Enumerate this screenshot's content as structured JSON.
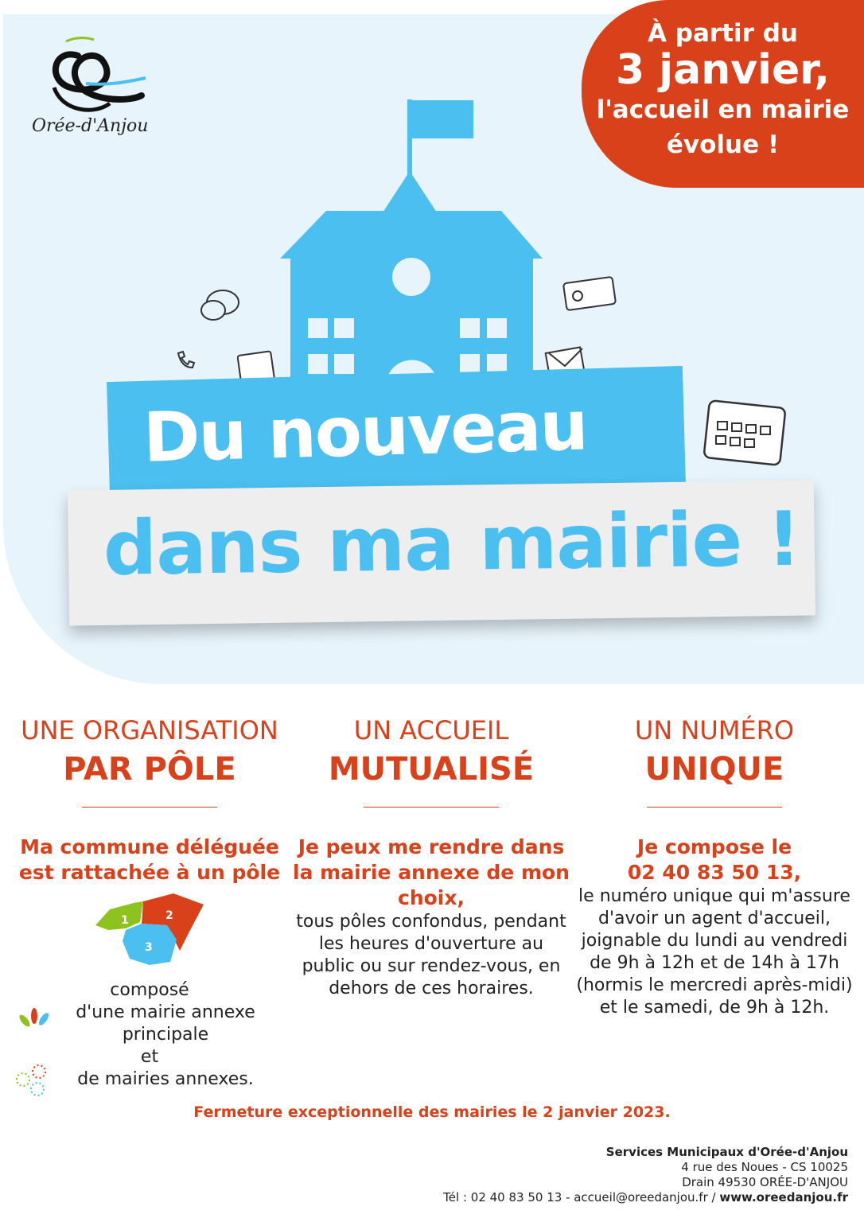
{
  "logo": {
    "text": "Orée-d'Anjou"
  },
  "badge": {
    "line1": "À partir du",
    "line2": "3 janvier,",
    "line3": "l'accueil en mairie",
    "line4": "évolue !"
  },
  "headline": {
    "line1": "Du nouveau",
    "line2": "dans ma mairie !"
  },
  "colors": {
    "accent": "#d9411a",
    "blue": "#4bbfef",
    "green": "#8dc21f",
    "background": "#e8f4fc"
  },
  "columns": [
    {
      "title1": "UNE ORGANISATION",
      "title2": "PAR PÔLE",
      "subtitle": "Ma commune déléguée est rattachée à un pôle",
      "map_labels": [
        "1",
        "2",
        "3"
      ],
      "body1": "composé",
      "body2": "d'une mairie annexe principale",
      "body3": "et",
      "body4": "de mairies annexes."
    },
    {
      "title1": "UN ACCUEIL",
      "title2": "MUTUALISÉ",
      "subtitle": "Je peux me rendre dans la mairie annexe de mon choix,",
      "body": "tous pôles confondus, pendant les heures d'ouverture au public ou sur rendez-vous, en dehors de ces horaires."
    },
    {
      "title1": "UN NUMÉRO",
      "title2": "UNIQUE",
      "subtitle1": "Je compose le",
      "subtitle2": "02 40 83 50 13,",
      "body": "le numéro unique qui m'assure d'avoir un agent d'accueil, joignable du lundi au vendredi de 9h à 12h et de 14h à 17h (hormis le mercredi après-midi) et le samedi, de 9h à 12h."
    }
  ],
  "notice": "Fermeture exceptionnelle des mairies le 2 janvier 2023.",
  "footer": {
    "org": "Services Municipaux d'Orée-d'Anjou",
    "address1": "4 rue des Noues - CS 10025",
    "address2": "Drain 49530 ORÉE-D'ANJOU",
    "contact": "Tél : 02 40 83 50 13 - accueil@oreedanjou.fr / ",
    "website": "www.oreedanjou.fr"
  }
}
